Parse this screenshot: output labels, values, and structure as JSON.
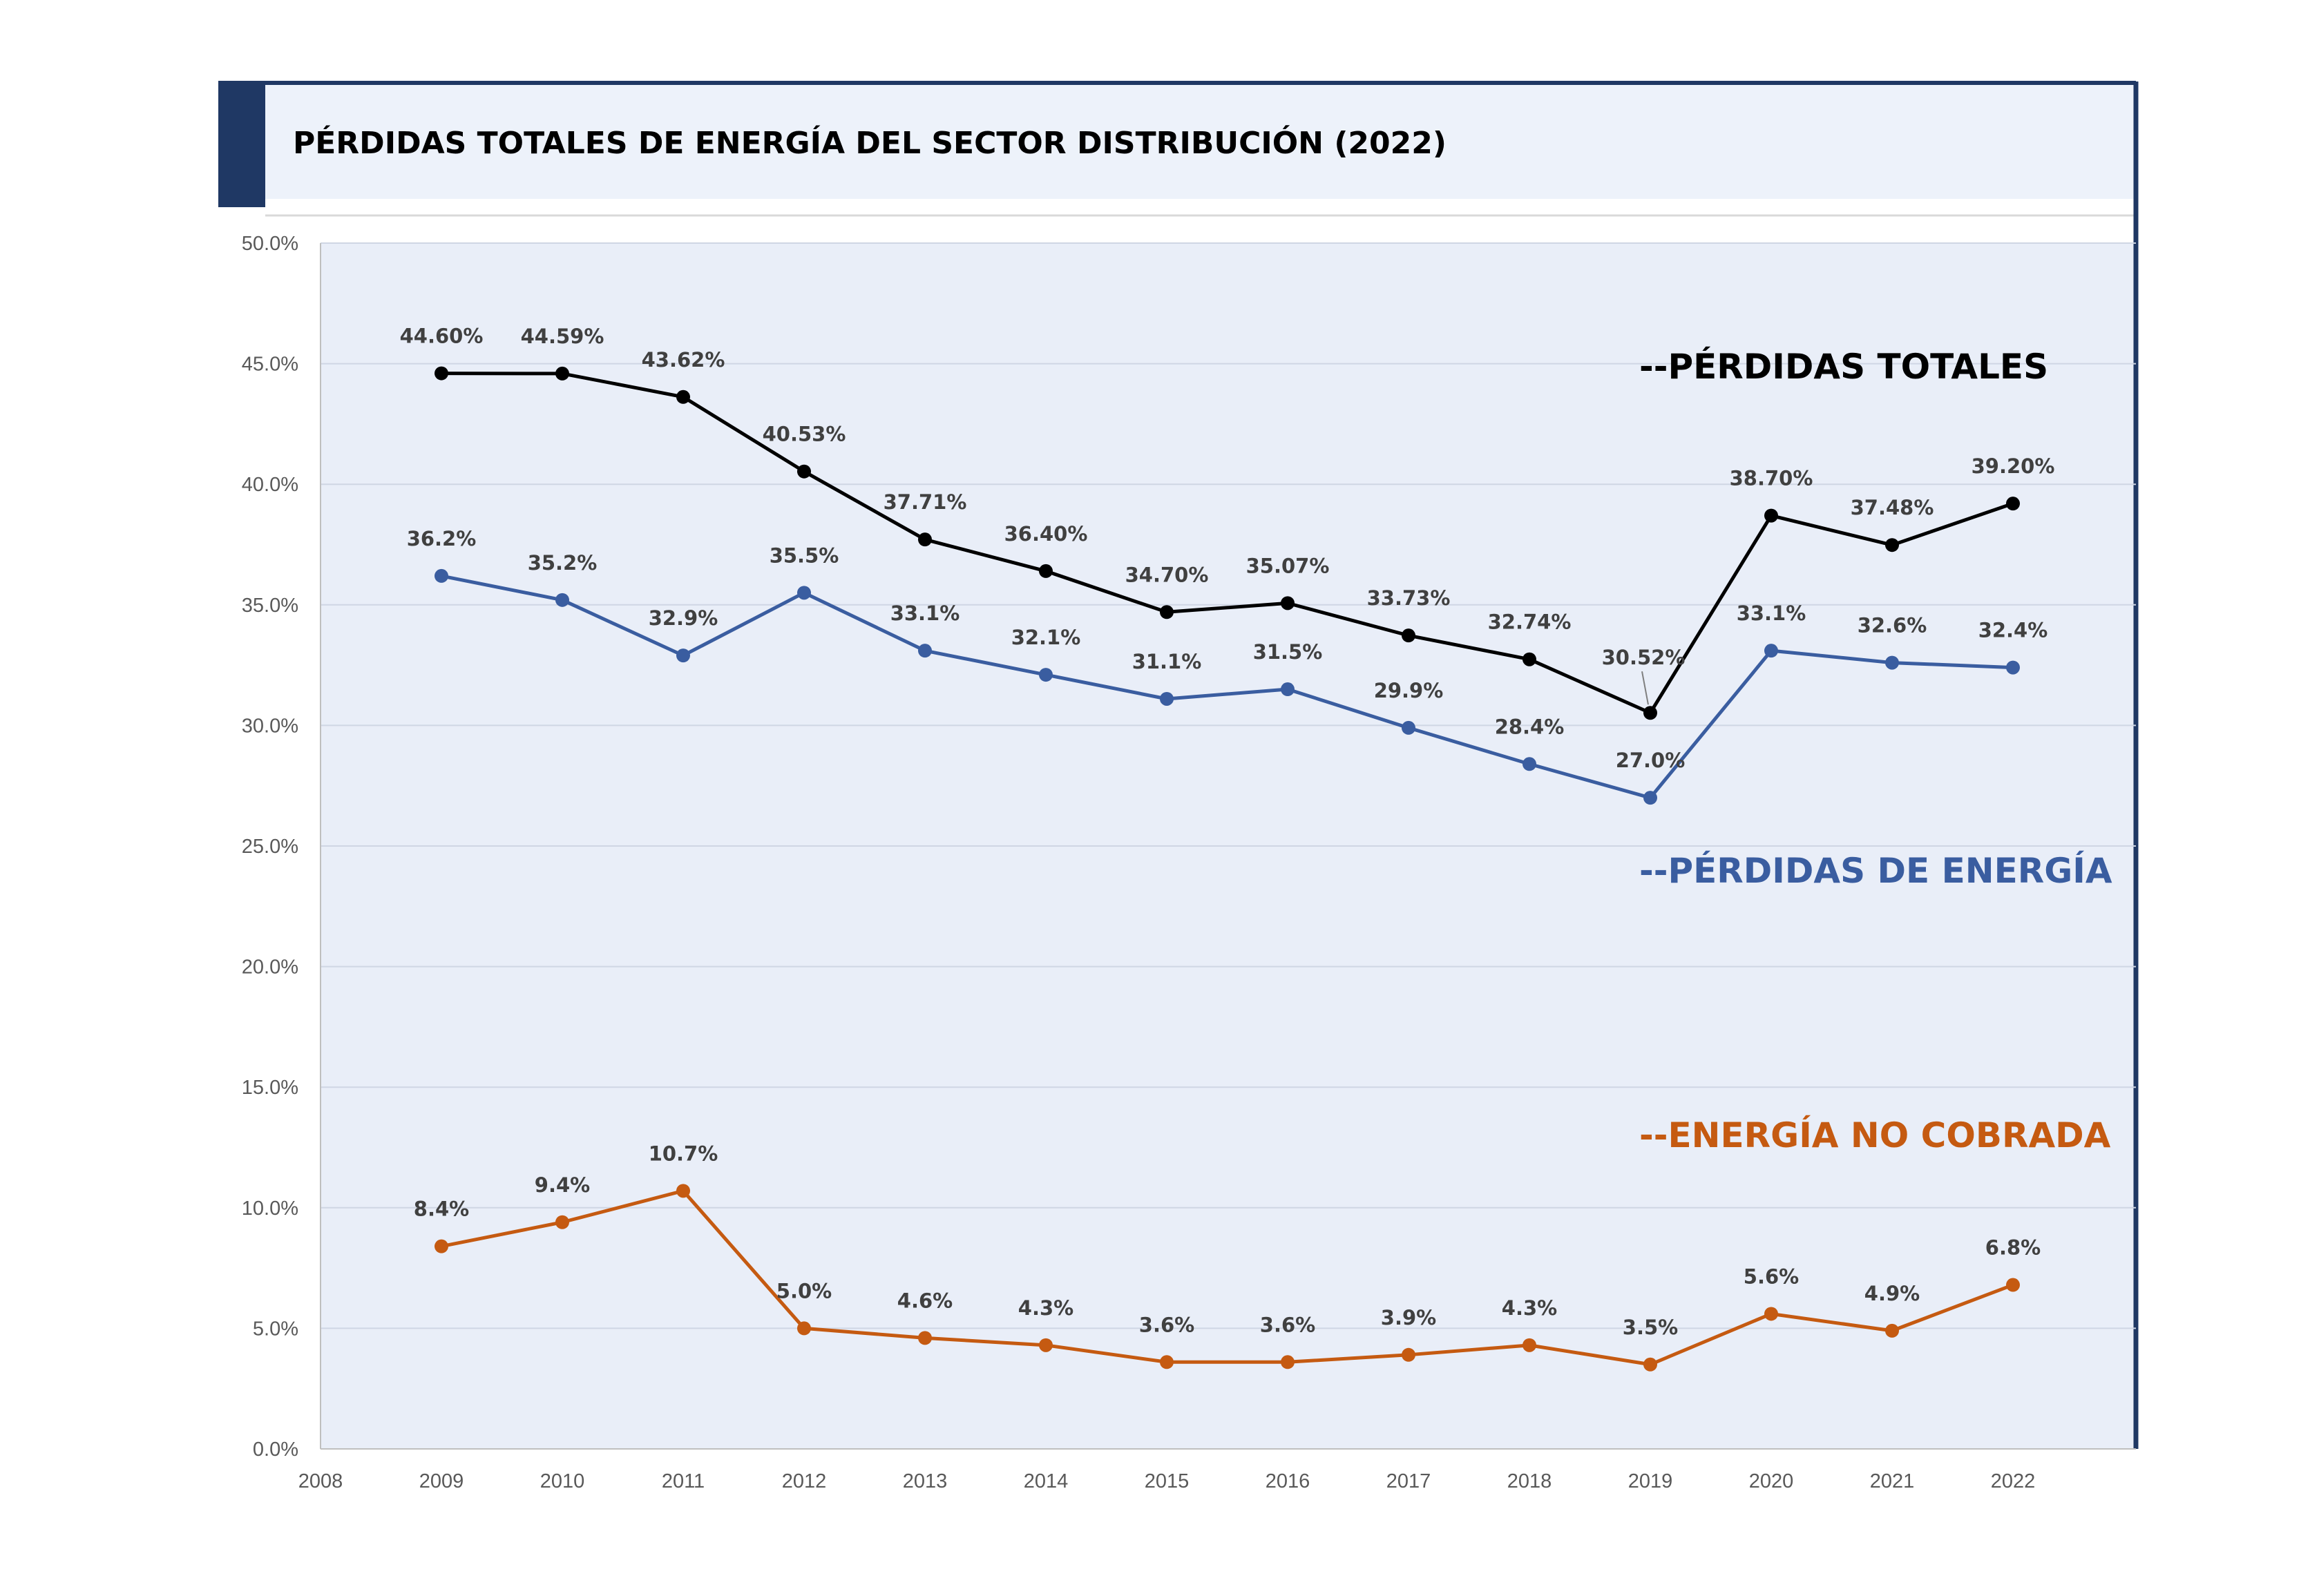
{
  "title": "PÉRDIDAS TOTALES DE ENERGÍA DEL SECTOR DISTRIBUCIÓN (2022)",
  "colors": {
    "header_accent": "#1f3864",
    "header_bg": "#edf2fa",
    "plot_bg": "#e9eef8",
    "frame": "#1f3864",
    "grid": "#cfd6e4"
  },
  "chart_data": {
    "type": "line",
    "title": "PÉRDIDAS TOTALES DE ENERGÍA DEL SECTOR DISTRIBUCIÓN (2022)",
    "xlabel": "",
    "ylabel": "",
    "x_ticks": [
      "2008",
      "2009",
      "2010",
      "2011",
      "2012",
      "2013",
      "2014",
      "2015",
      "2016",
      "2017",
      "2018",
      "2019",
      "2020",
      "2021",
      "2022"
    ],
    "y_ticks": [
      "0.0%",
      "5.0%",
      "10.0%",
      "15.0%",
      "20.0%",
      "25.0%",
      "30.0%",
      "35.0%",
      "40.0%",
      "45.0%",
      "50.0%"
    ],
    "xlim": [
      2008,
      2023
    ],
    "ylim": [
      0,
      50
    ],
    "grid": true,
    "x": [
      2009,
      2010,
      2011,
      2012,
      2013,
      2014,
      2015,
      2016,
      2017,
      2018,
      2019,
      2020,
      2021,
      2022
    ],
    "series": [
      {
        "name": "--PÉRDIDAS TOTALES",
        "color": "#000000",
        "values": [
          44.6,
          44.59,
          43.62,
          40.53,
          37.71,
          36.4,
          34.7,
          35.07,
          33.73,
          32.74,
          30.52,
          38.7,
          37.48,
          39.2
        ],
        "labels": [
          "44.60%",
          "44.59%",
          "43.62%",
          "40.53%",
          "37.71%",
          "36.40%",
          "34.70%",
          "35.07%",
          "33.73%",
          "32.74%",
          "30.52%",
          "38.70%",
          "37.48%",
          "39.20%"
        ]
      },
      {
        "name": "--PÉRDIDAS DE ENERGÍA",
        "color": "#3a5da0",
        "values": [
          36.2,
          35.2,
          32.9,
          35.5,
          33.1,
          32.1,
          31.1,
          31.5,
          29.9,
          28.4,
          27.0,
          33.1,
          32.6,
          32.4
        ],
        "labels": [
          "36.2%",
          "35.2%",
          "32.9%",
          "35.5%",
          "33.1%",
          "32.1%",
          "31.1%",
          "31.5%",
          "29.9%",
          "28.4%",
          "27.0%",
          "33.1%",
          "32.6%",
          "32.4%"
        ]
      },
      {
        "name": "--ENERGÍA NO COBRADA",
        "color": "#c55a11",
        "values": [
          8.4,
          9.4,
          10.7,
          5.0,
          4.6,
          4.3,
          3.6,
          3.6,
          3.9,
          4.3,
          3.5,
          5.6,
          4.9,
          6.8
        ],
        "labels": [
          "8.4%",
          "9.4%",
          "10.7%",
          "5.0%",
          "4.6%",
          "4.3%",
          "3.6%",
          "3.6%",
          "3.9%",
          "4.3%",
          "3.5%",
          "5.6%",
          "4.9%",
          "6.8%"
        ]
      }
    ]
  }
}
